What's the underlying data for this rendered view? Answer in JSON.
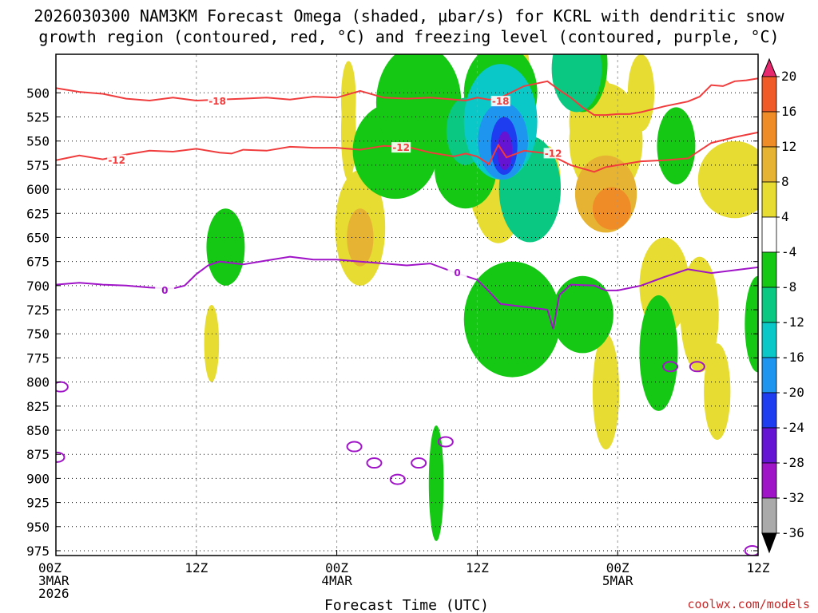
{
  "chart_data": {
    "type": "heatmap",
    "title_line1": "2026030300 NAM3KM Forecast Omega (shaded, μbar/s) for KCRL with dendritic snow",
    "title_line2": "growth region (contoured, red, °C) and freezing level (contoured, purple, °C)",
    "xlabel": "Forecast Time (UTC)",
    "ylabel": "",
    "credit": "coolwx.com/models",
    "xlim": [
      0,
      60
    ],
    "ylim": [
      980,
      460
    ],
    "x_ticks": [
      {
        "x": 0,
        "lines": [
          "00Z",
          "3MAR",
          "2026"
        ]
      },
      {
        "x": 12,
        "lines": [
          "12Z"
        ]
      },
      {
        "x": 24,
        "lines": [
          "00Z",
          "4MAR"
        ]
      },
      {
        "x": 36,
        "lines": [
          "12Z"
        ]
      },
      {
        "x": 48,
        "lines": [
          "00Z",
          "5MAR"
        ]
      },
      {
        "x": 60,
        "lines": [
          "12Z"
        ]
      }
    ],
    "y_ticks": [
      500,
      525,
      550,
      575,
      600,
      625,
      650,
      675,
      700,
      725,
      750,
      775,
      800,
      825,
      850,
      875,
      900,
      925,
      950,
      975
    ],
    "colorbar": {
      "labels": [
        "20",
        "16",
        "12",
        "8",
        "4",
        "-4",
        "-8",
        "-12",
        "-16",
        "-20",
        "-24",
        "-28",
        "-32",
        "-36"
      ],
      "colors": [
        "#e8286e",
        "#f05a28",
        "#f08c28",
        "#e6b432",
        "#e6dc32",
        "#ffffff",
        "#14c814",
        "#0ac882",
        "#0ac8c8",
        "#1e96f0",
        "#1e3cf0",
        "#6414d2",
        "#a014c8",
        "#aaaaaa",
        "#000000"
      ]
    },
    "contours": [
      {
        "name": "dendritic-top-minus18",
        "color": "#f03c3c",
        "label": "-18",
        "label_at": [
          [
            13.8,
            509
          ],
          [
            38.0,
            509
          ]
        ],
        "points": [
          [
            0,
            495
          ],
          [
            2,
            499
          ],
          [
            4,
            501
          ],
          [
            6,
            506
          ],
          [
            8,
            508
          ],
          [
            10,
            505
          ],
          [
            12,
            508
          ],
          [
            14,
            507
          ],
          [
            16,
            506
          ],
          [
            18,
            505
          ],
          [
            20,
            507
          ],
          [
            22,
            504
          ],
          [
            24,
            505
          ],
          [
            26,
            498
          ],
          [
            28,
            505
          ],
          [
            30,
            506
          ],
          [
            32,
            505
          ],
          [
            34,
            507
          ],
          [
            35,
            508
          ],
          [
            36,
            505
          ],
          [
            37,
            507
          ],
          [
            38,
            505
          ],
          [
            40,
            493
          ],
          [
            42,
            488
          ],
          [
            43,
            497
          ],
          [
            44,
            505
          ],
          [
            45,
            515
          ],
          [
            46,
            523
          ],
          [
            47,
            523
          ],
          [
            48,
            522
          ],
          [
            49,
            522
          ],
          [
            50,
            520
          ],
          [
            52,
            514
          ],
          [
            54,
            509
          ],
          [
            55,
            504
          ],
          [
            56,
            492
          ],
          [
            57,
            493
          ],
          [
            58,
            488
          ],
          [
            59,
            487
          ],
          [
            60,
            485
          ]
        ]
      },
      {
        "name": "dendritic-bottom-minus12",
        "color": "#f03c3c",
        "label": "-12",
        "label_at": [
          [
            5.2,
            570
          ],
          [
            29.5,
            557
          ],
          [
            42.5,
            563
          ]
        ],
        "points": [
          [
            0,
            570
          ],
          [
            2,
            565
          ],
          [
            3,
            567
          ],
          [
            4,
            569
          ],
          [
            6,
            564
          ],
          [
            8,
            560
          ],
          [
            10,
            561
          ],
          [
            12,
            558
          ],
          [
            14,
            562
          ],
          [
            15,
            563
          ],
          [
            16,
            559
          ],
          [
            18,
            560
          ],
          [
            20,
            556
          ],
          [
            22,
            557
          ],
          [
            24,
            557
          ],
          [
            26,
            559
          ],
          [
            28,
            555
          ],
          [
            30,
            556
          ],
          [
            32,
            562
          ],
          [
            34,
            566
          ],
          [
            35,
            563
          ],
          [
            36,
            566
          ],
          [
            37,
            574
          ],
          [
            37.8,
            554
          ],
          [
            38.5,
            567
          ],
          [
            40,
            560
          ],
          [
            42,
            563
          ],
          [
            44,
            575
          ],
          [
            46,
            582
          ],
          [
            47,
            577
          ],
          [
            48,
            575
          ],
          [
            50,
            571
          ],
          [
            52,
            570
          ],
          [
            54,
            568
          ],
          [
            56,
            552
          ],
          [
            58,
            546
          ],
          [
            60,
            541
          ]
        ]
      },
      {
        "name": "freezing-level-0",
        "color": "#a014c8",
        "label": "0",
        "label_at": [
          [
            9.3,
            705
          ],
          [
            34.3,
            687
          ]
        ],
        "points": [
          [
            0,
            699
          ],
          [
            2,
            697
          ],
          [
            4,
            699
          ],
          [
            6,
            700
          ],
          [
            8,
            702
          ],
          [
            10,
            703
          ],
          [
            11,
            700
          ],
          [
            12,
            688
          ],
          [
            13,
            679
          ],
          [
            14,
            675
          ],
          [
            16,
            678
          ],
          [
            18,
            674
          ],
          [
            20,
            670
          ],
          [
            22,
            673
          ],
          [
            24,
            673
          ],
          [
            26,
            675
          ],
          [
            28,
            677
          ],
          [
            30,
            679
          ],
          [
            32,
            677
          ],
          [
            34,
            686
          ],
          [
            36,
            694
          ],
          [
            37,
            706
          ],
          [
            38,
            719
          ],
          [
            40,
            722
          ],
          [
            42,
            725
          ],
          [
            42.5,
            745
          ],
          [
            43,
            710
          ],
          [
            44,
            699
          ],
          [
            46,
            700
          ],
          [
            47,
            705
          ],
          [
            48,
            705
          ],
          [
            50,
            700
          ],
          [
            52,
            691
          ],
          [
            54,
            683
          ],
          [
            56,
            687
          ],
          [
            58,
            684
          ],
          [
            60,
            681
          ]
        ]
      }
    ],
    "small_freezing_loops": [
      {
        "x": 0.4,
        "y": 805
      },
      {
        "x": 0.1,
        "y": 878
      },
      {
        "x": 25.5,
        "y": 867
      },
      {
        "x": 27.2,
        "y": 884
      },
      {
        "x": 29.2,
        "y": 901
      },
      {
        "x": 31.0,
        "y": 884
      },
      {
        "x": 33.3,
        "y": 862
      },
      {
        "x": 52.5,
        "y": 784
      },
      {
        "x": 54.8,
        "y": 784
      },
      {
        "x": 59.5,
        "y": 975
      }
    ],
    "omega_areas": [
      {
        "name": "rising-4",
        "color": "#e6dc32",
        "value": 4,
        "cells": [
          [
            25,
            507,
            1
          ],
          [
            25,
            541,
            1
          ],
          [
            26,
            640,
            4
          ],
          [
            36.5,
            596,
            2
          ],
          [
            37.8,
            606,
            4
          ],
          [
            40,
            510,
            1
          ],
          [
            42,
            595,
            2
          ],
          [
            46,
            530,
            4
          ],
          [
            47,
            550,
            6
          ],
          [
            50,
            500,
            2
          ],
          [
            52,
            700,
            4
          ],
          [
            55,
            730,
            3
          ],
          [
            58,
            590,
            6
          ],
          [
            56.5,
            810,
            2
          ],
          [
            47,
            810,
            2
          ],
          [
            13.3,
            760,
            1
          ]
        ]
      },
      {
        "name": "rising-8",
        "color": "#e6b432",
        "value": 8,
        "cells": [
          [
            26,
            650,
            2
          ],
          [
            47,
            605,
            5
          ]
        ]
      },
      {
        "name": "rising-12",
        "color": "#f08c28",
        "value": 12,
        "cells": [
          [
            47.5,
            620,
            3
          ]
        ]
      },
      {
        "name": "sinking-4",
        "color": "#14c814",
        "value": -4,
        "cells": [
          [
            14.5,
            660,
            3
          ],
          [
            29,
            560,
            7
          ],
          [
            31,
            510,
            7
          ],
          [
            35,
            580,
            5
          ],
          [
            38,
            500,
            6
          ],
          [
            39,
            735,
            8
          ],
          [
            45,
            730,
            5
          ],
          [
            45,
            470,
            4
          ],
          [
            51.5,
            770,
            3
          ],
          [
            53,
            555,
            3
          ],
          [
            60,
            740,
            2
          ],
          [
            32.5,
            905,
            1
          ]
        ]
      },
      {
        "name": "sinking-8",
        "color": "#0ac882",
        "value": -8,
        "cells": [
          [
            35,
            540,
            3
          ],
          [
            44.5,
            475,
            4
          ],
          [
            40.5,
            600,
            5
          ]
        ]
      },
      {
        "name": "sinking-12",
        "color": "#0ac8c8",
        "value": -12,
        "cells": [
          [
            38,
            530,
            6
          ]
        ]
      },
      {
        "name": "sinking-16",
        "color": "#1e96f0",
        "value": -16,
        "cells": [
          [
            38.2,
            550,
            4
          ]
        ]
      },
      {
        "name": "sinking-20",
        "color": "#1e3cf0",
        "value": -20,
        "cells": [
          [
            38.3,
            555,
            2
          ]
        ]
      },
      {
        "name": "sinking-24",
        "color": "#6414d2",
        "value": -24,
        "cells": [
          [
            38.35,
            560,
            1
          ]
        ]
      }
    ],
    "ground_color": "#a0522d"
  }
}
